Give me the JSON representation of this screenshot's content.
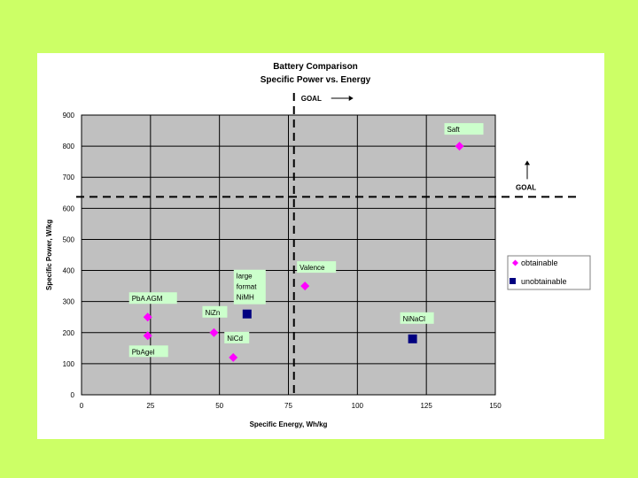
{
  "chart_data": {
    "type": "scatter",
    "title": "Battery Comparison",
    "subtitle": "Specific Power vs. Energy",
    "xlabel": "Specific Energy, Wh/kg",
    "ylabel": "Specific Power, W/kg",
    "xlim": [
      0,
      150
    ],
    "ylim": [
      0,
      900
    ],
    "x_ticks": [
      0,
      25,
      50,
      75,
      100,
      125,
      150
    ],
    "y_ticks": [
      0,
      100,
      200,
      300,
      400,
      500,
      600,
      700,
      800,
      900
    ],
    "grid": true,
    "legend_position": "right",
    "goal_x": 77,
    "goal_y": 637,
    "goal_label_x": "GOAL",
    "goal_label_y": "GOAL",
    "series": [
      {
        "name": "obtainable",
        "color": "#ff00ff",
        "marker": "diamond",
        "points": [
          {
            "x": 137,
            "y": 800,
            "label": "Saft"
          },
          {
            "x": 81,
            "y": 350,
            "label": "Valence"
          },
          {
            "x": 24,
            "y": 250,
            "label": "PbA AGM"
          },
          {
            "x": 24,
            "y": 190,
            "label": "PbAgel"
          },
          {
            "x": 48,
            "y": 200,
            "label": "NiZn"
          },
          {
            "x": 55,
            "y": 120,
            "label": "NiCd"
          }
        ]
      },
      {
        "name": "unobtainable",
        "color": "#000080",
        "marker": "square",
        "points": [
          {
            "x": 60,
            "y": 260,
            "label": "large format NiMH"
          },
          {
            "x": 120,
            "y": 180,
            "label": "NiNaCl"
          }
        ]
      }
    ]
  }
}
